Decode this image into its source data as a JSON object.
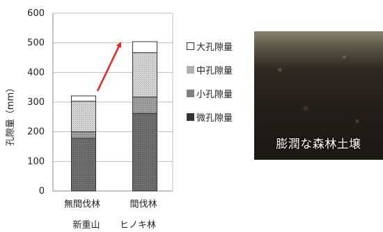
{
  "chart_data": {
    "type": "bar",
    "stacked": true,
    "categories": [
      "無間伐林",
      "間伐林"
    ],
    "category_sublabels": [
      "新重山",
      "ヒノキ林"
    ],
    "ylabel": "孔隙量（mm）",
    "ylim": [
      0,
      600
    ],
    "yticks": [
      0,
      100,
      200,
      300,
      400,
      500,
      600
    ],
    "grid": true,
    "series": [
      {
        "name": "微孔隙量",
        "values": [
          178,
          262
        ],
        "color": "#7a7a7a",
        "pattern": "dotted-dark"
      },
      {
        "name": "小孔隙量",
        "values": [
          22,
          55
        ],
        "color": "#9a9a9a",
        "pattern": "dotted-medium"
      },
      {
        "name": "中孔隙量",
        "values": [
          103,
          150
        ],
        "color": "#d0d0d0",
        "pattern": "dotted-light"
      },
      {
        "name": "大孔隙量",
        "values": [
          18,
          37
        ],
        "color": "#ffffff",
        "pattern": "none"
      }
    ],
    "legend": {
      "placement": "right",
      "items": [
        {
          "symbol": "□",
          "label": "大孔隙量",
          "color": "#ffffff"
        },
        {
          "symbol": "■",
          "label": "中孔隙量",
          "color": "#b0b0b0"
        },
        {
          "symbol": "■",
          "label": "小孔隙量",
          "color": "#7e7e7e"
        },
        {
          "symbol": "■",
          "label": "微孔隙量",
          "color": "#333333"
        }
      ]
    },
    "annotation": {
      "type": "arrow",
      "from": "無間伐林",
      "to": "間伐林",
      "color": "#e8231f"
    }
  },
  "photo": {
    "caption": "膨潤な森林土壌"
  }
}
